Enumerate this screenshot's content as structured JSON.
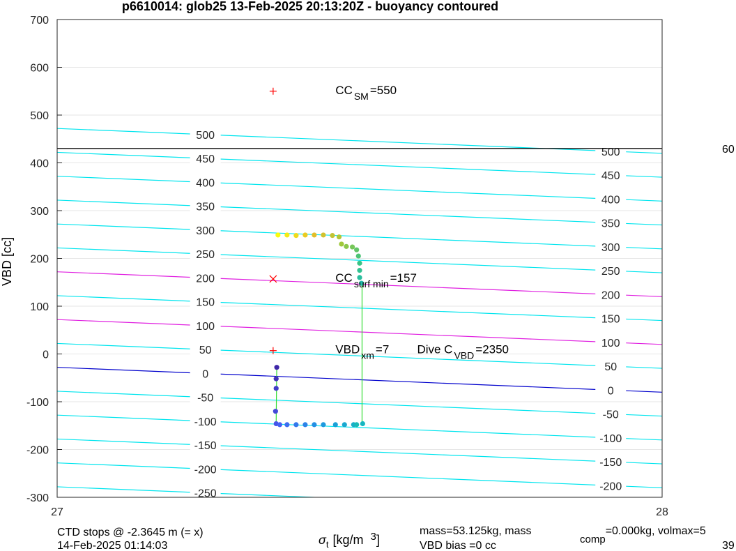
{
  "chart_data": {
    "type": "scatter",
    "title": "p6610014: glob25 13-Feb-2025 20:13:20Z - buoyancy contoured",
    "ylabel": "VBD [cc]",
    "xlabel_sym": "σ",
    "xlabel_sub": "t",
    "xlabel_rest": "[kg/m",
    "xlabel_sup": "3",
    "xlabel_close": "]",
    "xlim": [
      27,
      28
    ],
    "ylim": [
      -300,
      700
    ],
    "x_ticks": [
      "27",
      "28"
    ],
    "y_ticks": [
      "-300",
      "-200",
      "-100",
      "0",
      "100",
      "200",
      "300",
      "400",
      "500",
      "600",
      "700"
    ],
    "grid": true,
    "contours": {
      "levels": [
        -250,
        -200,
        -150,
        -100,
        -50,
        0,
        50,
        100,
        150,
        200,
        250,
        300,
        350,
        400,
        450,
        500
      ],
      "labels_left": [
        "-250",
        "-200",
        "-150",
        "-100",
        "-50",
        "0",
        "50",
        "100",
        "150",
        "200",
        "250",
        "300",
        "350",
        "400",
        "450",
        "500"
      ],
      "labels_right": [
        "-200",
        "-150",
        "-100",
        "-50",
        "0",
        "50",
        "100",
        "150",
        "200",
        "250",
        "300",
        "350",
        "400",
        "450",
        "500"
      ],
      "zero_color": "#0000cc",
      "highlight_levels": [
        100,
        200
      ],
      "highlight_color": "#e020e0",
      "line_color": "#00e5ee"
    },
    "hline": {
      "y": 430,
      "color": "#000000",
      "label": "60"
    },
    "markers": [
      {
        "x": 27.357,
        "y": 550,
        "symbol": "+",
        "color": "#ff0000"
      },
      {
        "x": 27.357,
        "y": 157,
        "symbol": "x",
        "color": "#ff0000"
      },
      {
        "x": 27.357,
        "y": 7,
        "symbol": "+",
        "color": "#ff0000"
      }
    ],
    "annotations": [
      {
        "x": 27.46,
        "y": 550,
        "base": "CC",
        "sub": "SM",
        "tail": "=550"
      },
      {
        "x": 27.46,
        "y": 157,
        "base": "CC",
        "sub": "surf min",
        "tail": "=157"
      },
      {
        "x": 27.46,
        "y": 7,
        "base": "VBD",
        "sub": "xm",
        "tail": "=7"
      },
      {
        "x": 27.595,
        "y": 7,
        "base": "Dive C",
        "sub": "VBD",
        "tail": "=2350"
      }
    ],
    "series": [
      {
        "points": [
          [
            27.363,
            -28
          ],
          [
            27.362,
            -52
          ],
          [
            27.362,
            -72
          ],
          [
            27.361,
            -120
          ],
          [
            27.362,
            -146
          ],
          [
            27.368,
            -148
          ],
          [
            27.38,
            -148
          ],
          [
            27.395,
            -148
          ],
          [
            27.41,
            -148
          ],
          [
            27.425,
            -148
          ],
          [
            27.44,
            -148
          ],
          [
            27.46,
            -148
          ],
          [
            27.475,
            -148
          ],
          [
            27.49,
            -148
          ],
          [
            27.505,
            -146
          ],
          [
            27.495,
            -148
          ],
          [
            27.503,
            148
          ],
          [
            27.5,
            160
          ],
          [
            27.5,
            175
          ],
          [
            27.5,
            190
          ],
          [
            27.498,
            205
          ],
          [
            27.495,
            218
          ],
          [
            27.488,
            224
          ],
          [
            27.478,
            225
          ],
          [
            27.47,
            230
          ],
          [
            27.466,
            245
          ],
          [
            27.455,
            248
          ],
          [
            27.44,
            249
          ],
          [
            27.425,
            249
          ],
          [
            27.41,
            249
          ],
          [
            27.395,
            248
          ],
          [
            27.38,
            249
          ],
          [
            27.365,
            249
          ]
        ],
        "vertical_link": {
          "x": 27.504,
          "y_from": -146,
          "y_to": 148,
          "color": "#33dd33"
        },
        "colormap": "parula"
      }
    ],
    "footer": {
      "ctd": "CTD stops @ -2.3645 m (= x)",
      "date": "14-Feb-2025 01:14:03",
      "mass": "mass=53.125kg, mass",
      "mass_sub": "comp",
      "mass_tail": "=0.000kg, volmax=5",
      "bias": "VBD bias =0 cc",
      "right_num": "39"
    }
  }
}
